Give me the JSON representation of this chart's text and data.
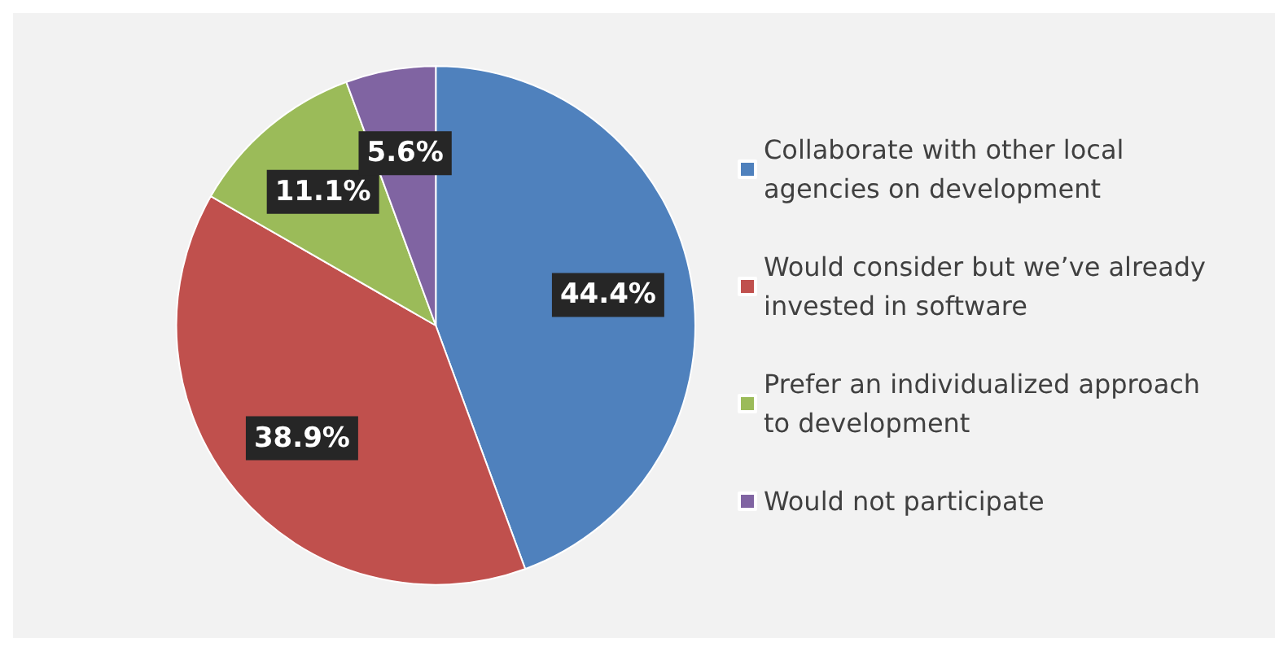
{
  "chart_data": {
    "type": "pie",
    "categories": [
      "Collaborate with other local agencies on development",
      "Would consider but we’ve already invested in software",
      "Prefer an individualized approach to development",
      "Would not participate"
    ],
    "values": [
      44.4,
      38.9,
      11.1,
      5.6
    ],
    "colors": [
      "#4f81bd",
      "#c0504d",
      "#9bbb59",
      "#8064a2"
    ],
    "value_labels": [
      "44.4%",
      "38.9%",
      "11.1%",
      "5.6%"
    ],
    "legend": "right"
  }
}
